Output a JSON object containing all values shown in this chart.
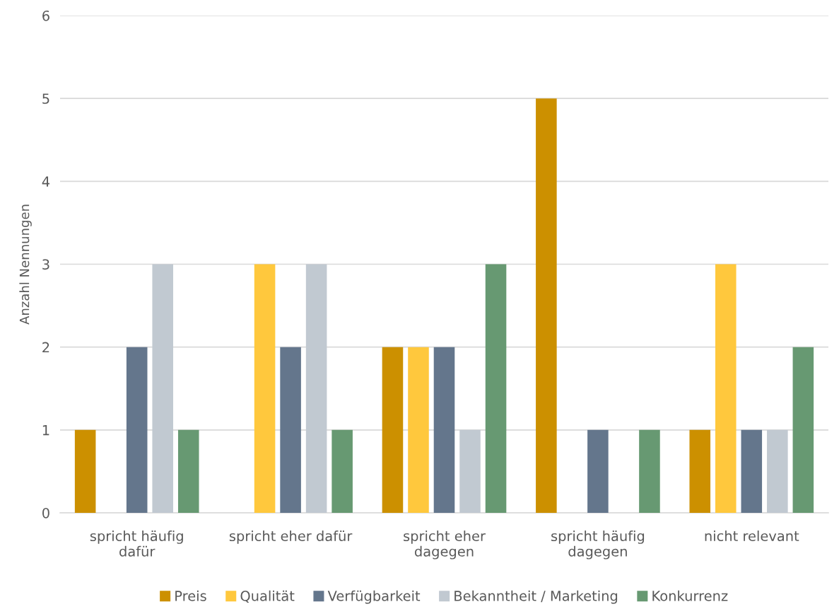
{
  "chart_data": {
    "type": "bar",
    "ylabel": "Anzahl Nennungen",
    "categories": [
      "spricht häufig\ndafür",
      "spricht eher dafür",
      "spricht eher\ndagegen",
      "spricht häufig\ndagegen",
      "nicht relevant"
    ],
    "series": [
      {
        "name": "Preis",
        "color": "#cc9000",
        "values": [
          1,
          0,
          2,
          5,
          1
        ]
      },
      {
        "name": "Qualität",
        "color": "#ffc83d",
        "values": [
          0,
          3,
          2,
          0,
          3
        ]
      },
      {
        "name": "Verfügbarkeit",
        "color": "#64768c",
        "values": [
          2,
          2,
          2,
          1,
          1
        ]
      },
      {
        "name": "Bekanntheit / Marketing",
        "color": "#c1c9d1",
        "values": [
          3,
          3,
          1,
          0,
          1
        ]
      },
      {
        "name": "Konkurrenz",
        "color": "#679972",
        "values": [
          1,
          1,
          3,
          1,
          2
        ]
      }
    ],
    "ylim": [
      0,
      6
    ],
    "yticks": [
      0,
      1,
      2,
      3,
      4,
      5,
      6
    ],
    "grid": "y",
    "legend": "bottom"
  }
}
